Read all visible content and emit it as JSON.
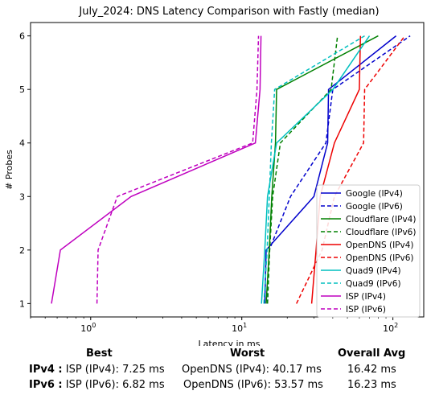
{
  "chart_data": {
    "type": "line",
    "title": "July_2024: DNS Latency Comparison with Fastly (median)",
    "xlabel": "Latency in ms",
    "ylabel": "# Probes",
    "x_scale": "log",
    "xlim": [
      0.4,
      160
    ],
    "ylim": [
      0.75,
      6.25
    ],
    "x_ticks": [
      {
        "value": 1,
        "label": "10^0"
      },
      {
        "value": 10,
        "label": "10^1"
      },
      {
        "value": 100,
        "label": "10^2"
      }
    ],
    "y_ticks": [
      1,
      2,
      3,
      4,
      5,
      6
    ],
    "grid": false,
    "legend_placement": "lower-right",
    "series": [
      {
        "name": "Google (IPv4)",
        "color": "#0000cc",
        "dash": "solid",
        "points": [
          [
            14.2,
            1
          ],
          [
            14.5,
            2
          ],
          [
            30,
            3
          ],
          [
            37,
            4
          ],
          [
            37.5,
            5
          ],
          [
            105,
            6
          ]
        ]
      },
      {
        "name": "Google (IPv6)",
        "color": "#0000cc",
        "dash": "dashed",
        "points": [
          [
            14.8,
            1
          ],
          [
            15.2,
            2
          ],
          [
            21,
            3
          ],
          [
            36,
            4
          ],
          [
            40,
            5
          ],
          [
            130,
            6
          ]
        ]
      },
      {
        "name": "Cloudflare (IPv4)",
        "color": "#008000",
        "dash": "solid",
        "points": [
          [
            14.5,
            1
          ],
          [
            15.2,
            2
          ],
          [
            15.8,
            3
          ],
          [
            16.7,
            4
          ],
          [
            17,
            5
          ],
          [
            80,
            6
          ]
        ]
      },
      {
        "name": "Cloudflare (IPv6)",
        "color": "#008000",
        "dash": "dashed",
        "points": [
          [
            14.8,
            1
          ],
          [
            15.3,
            2
          ],
          [
            16,
            3
          ],
          [
            18,
            4
          ],
          [
            39,
            5
          ],
          [
            43,
            6
          ]
        ]
      },
      {
        "name": "OpenDNS (IPv4)",
        "color": "#ee0000",
        "dash": "solid",
        "points": [
          [
            29,
            1
          ],
          [
            31,
            2
          ],
          [
            33,
            3
          ],
          [
            41,
            4
          ],
          [
            60,
            5
          ],
          [
            61,
            6
          ]
        ]
      },
      {
        "name": "OpenDNS (IPv6)",
        "color": "#ee0000",
        "dash": "dashed",
        "points": [
          [
            23,
            1
          ],
          [
            34,
            2
          ],
          [
            41,
            3
          ],
          [
            64,
            4
          ],
          [
            65,
            5
          ],
          [
            120,
            6
          ]
        ]
      },
      {
        "name": "Quad9 (IPv4)",
        "color": "#00bfbf",
        "dash": "solid",
        "points": [
          [
            13.5,
            1
          ],
          [
            14.2,
            2
          ],
          [
            14.8,
            3
          ],
          [
            17,
            4
          ],
          [
            40,
            5
          ],
          [
            70,
            6
          ]
        ]
      },
      {
        "name": "Quad9 (IPv6)",
        "color": "#00bfbf",
        "dash": "dashed",
        "points": [
          [
            14,
            1
          ],
          [
            14.7,
            2
          ],
          [
            15.2,
            3
          ],
          [
            15.7,
            4
          ],
          [
            16.5,
            5
          ],
          [
            65,
            6
          ]
        ]
      },
      {
        "name": "ISP (IPv4)",
        "color": "#bf00bf",
        "dash": "solid",
        "points": [
          [
            0.55,
            1
          ],
          [
            0.63,
            2
          ],
          [
            1.85,
            3
          ],
          [
            12.3,
            4
          ],
          [
            13.2,
            5
          ],
          [
            13.4,
            6
          ]
        ]
      },
      {
        "name": "ISP (IPv6)",
        "color": "#bf00bf",
        "dash": "dashed",
        "points": [
          [
            1.1,
            1
          ],
          [
            1.12,
            2
          ],
          [
            1.5,
            3
          ],
          [
            11.8,
            4
          ],
          [
            12.6,
            5
          ],
          [
            12.9,
            6
          ]
        ]
      }
    ]
  },
  "summary": {
    "headers": {
      "best": "Best",
      "worst": "Worst",
      "overall": "Overall Avg"
    },
    "rows": [
      {
        "label": "IPv4 :",
        "best": "ISP (IPv4): 7.25 ms",
        "worst": "OpenDNS (IPv4): 40.17 ms",
        "overall": "16.42 ms"
      },
      {
        "label": "IPv6 :",
        "best": "ISP (IPv6): 6.82 ms",
        "worst": "OpenDNS (IPv6): 53.57 ms",
        "overall": "16.23 ms"
      }
    ]
  }
}
